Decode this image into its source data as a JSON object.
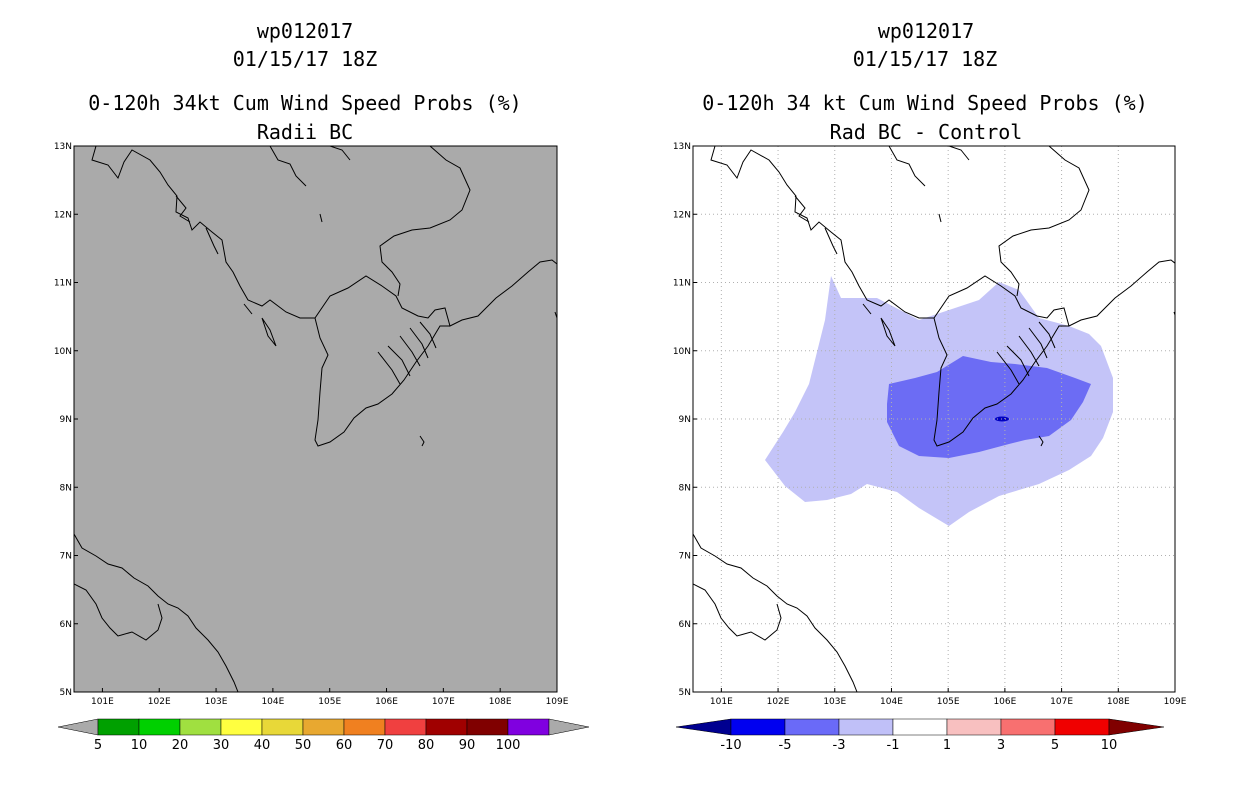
{
  "left": {
    "title_line1": "wp012017",
    "title_line2": "01/15/17 18Z",
    "title_line3": "0-120h 34kt Cum Wind Speed Probs (%)",
    "subtitle": "Radii BC",
    "colorbar": {
      "labels": [
        "5",
        "10",
        "20",
        "30",
        "40",
        "50",
        "60",
        "70",
        "80",
        "90",
        "100"
      ],
      "colors": [
        "#00a000",
        "#00d000",
        "#a0e040",
        "#ffff40",
        "#e8d838",
        "#e8a830",
        "#f08020",
        "#f04040",
        "#a00000",
        "#800000",
        "#8000e0"
      ]
    },
    "field_color": "#aaaaaa"
  },
  "right": {
    "title_line1": "wp012017",
    "title_line2": "01/15/17 18Z",
    "title_line3": "0-120h 34 kt Cum Wind Speed Probs (%)",
    "subtitle": "Rad BC - Control",
    "colorbar": {
      "labels": [
        "-10",
        "-5",
        "-3",
        "-1",
        "1",
        "3",
        "5",
        "10"
      ],
      "colors": [
        "#000090",
        "#0000f0",
        "#6a6af8",
        "#c0c0f8",
        "#ffffff",
        "#f8c0c0",
        "#f87070",
        "#f00000",
        "#800000"
      ]
    },
    "shade_colors": {
      "light": "#c4c4f8",
      "medium": "#6c6cf4",
      "dark": "#0000c0"
    }
  },
  "axes": {
    "lon_labels": [
      "101E",
      "102E",
      "103E",
      "104E",
      "105E",
      "106E",
      "107E",
      "108E",
      "109E"
    ],
    "lat_labels": [
      "5N",
      "6N",
      "7N",
      "8N",
      "9N",
      "10N",
      "11N",
      "12N",
      "13N"
    ],
    "lon_range": [
      100.5,
      109
    ],
    "lat_range": [
      5,
      13
    ]
  }
}
